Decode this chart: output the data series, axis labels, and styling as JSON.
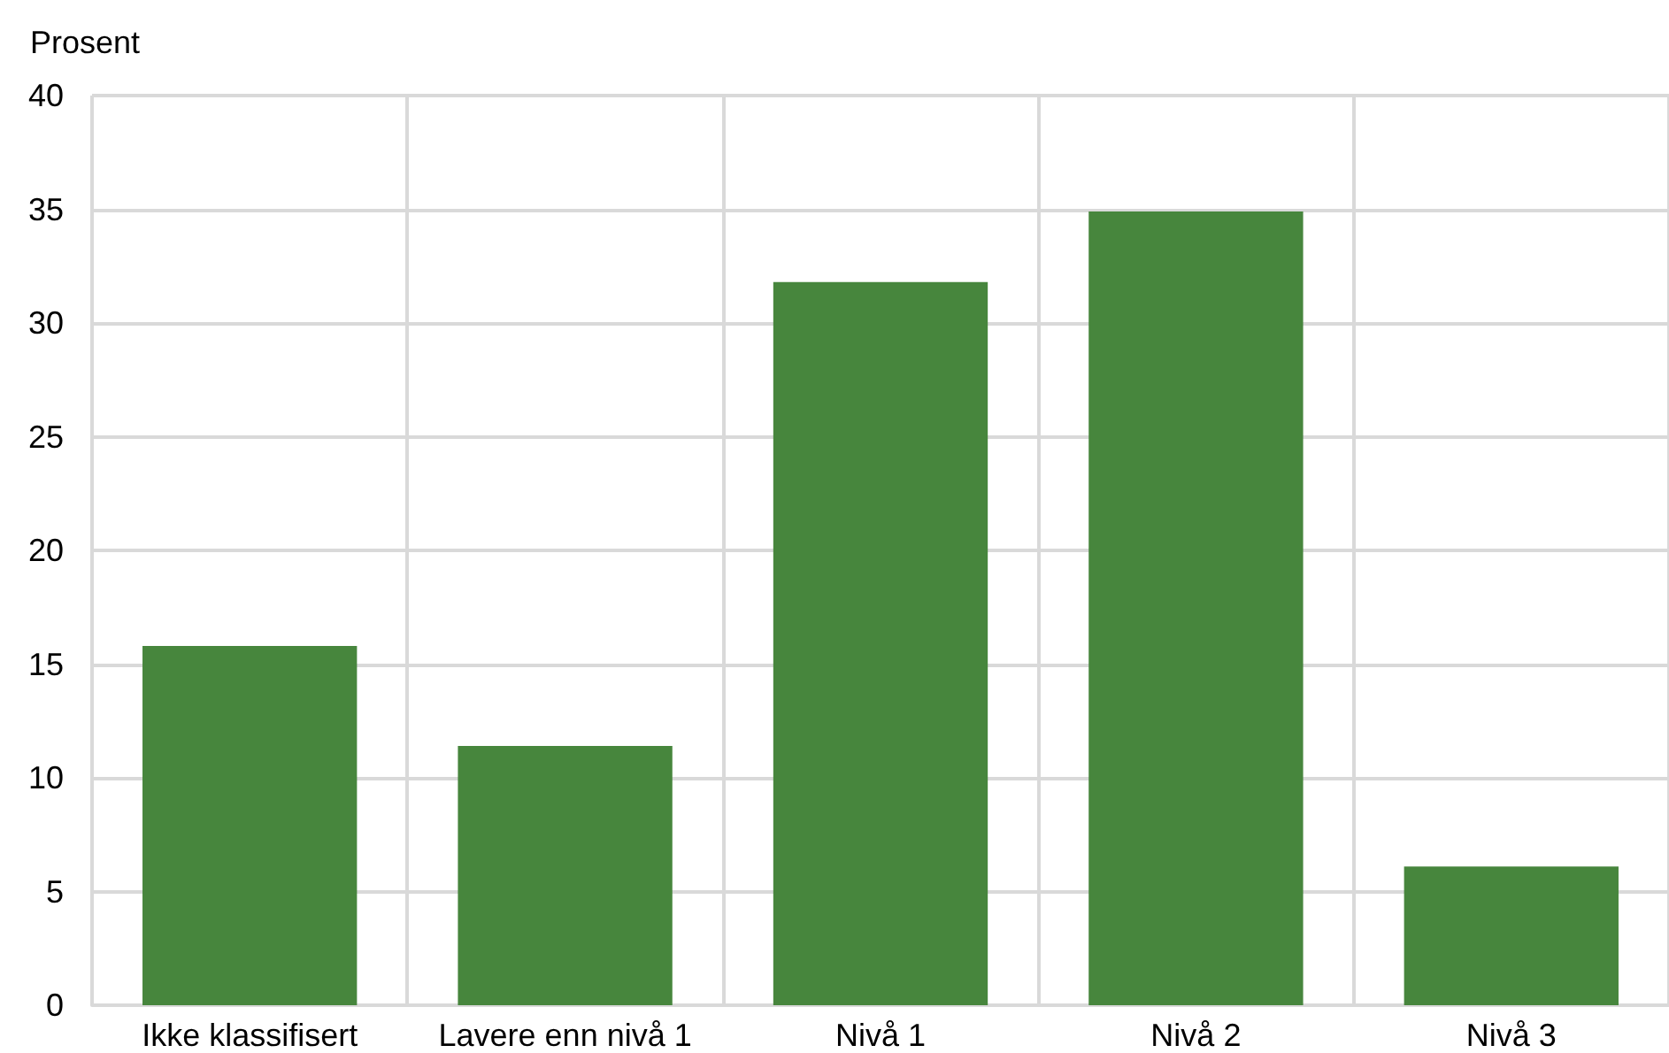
{
  "chart_data": {
    "type": "bar",
    "ylabel": "Prosent",
    "categories": [
      "Ikke klassifisert",
      "Lavere enn nivå 1",
      "Nivå 1",
      "Nivå 2",
      "Nivå 3"
    ],
    "values": [
      15.8,
      11.4,
      31.8,
      34.9,
      6.1
    ],
    "color": "#47863d",
    "ylim": [
      0,
      40
    ],
    "yticks": [
      0,
      5,
      10,
      15,
      20,
      25,
      30,
      35,
      40
    ],
    "grid": true
  }
}
